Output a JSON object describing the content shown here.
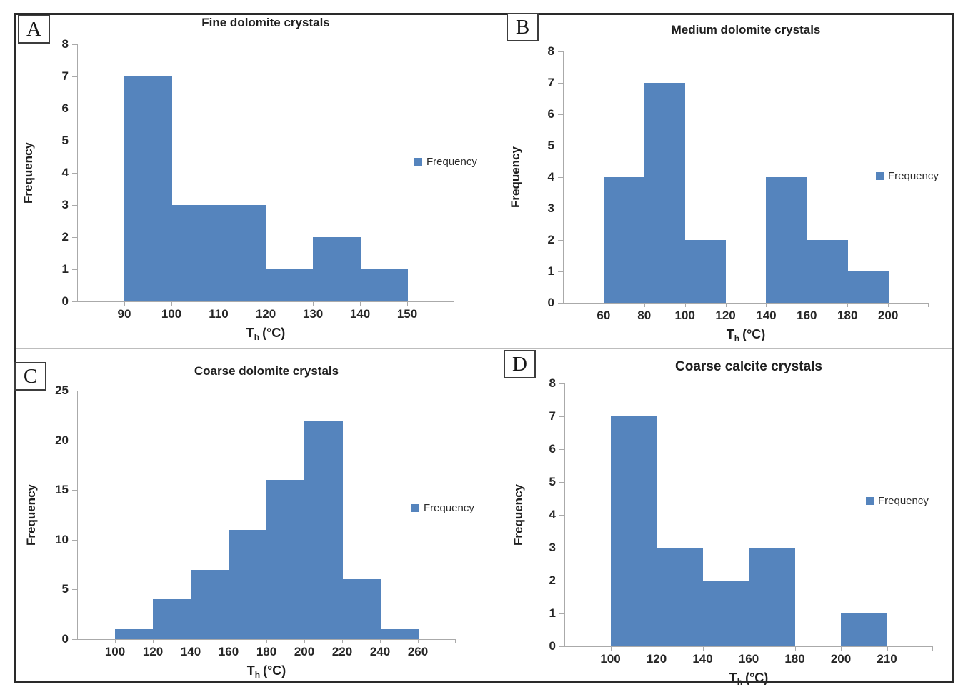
{
  "figure": {
    "background": "#FFFFFF",
    "border_color": "#2A2A2A",
    "bar_color": "#5584BD",
    "axis_color": "#AAAAAA",
    "text_color": "#1F1F1F"
  },
  "chart_data": [
    {
      "type": "bar",
      "panel": "A",
      "title": "Fine dolomite crystals",
      "ylabel": "Frequency",
      "xlabel_main": "T",
      "xlabel_sub": "h",
      "xlabel_unit": "(°C)",
      "legend_label": "Frequency",
      "legend_position": "right",
      "grid": false,
      "bin_edges": [
        90,
        100,
        110,
        120,
        130,
        140,
        150
      ],
      "values": [
        7,
        3,
        3,
        1,
        2,
        1
      ],
      "ylim": [
        0,
        8
      ],
      "yticks": [
        0,
        1,
        2,
        3,
        4,
        5,
        6,
        7,
        8
      ]
    },
    {
      "type": "bar",
      "panel": "B",
      "title": "Medium dolomite crystals",
      "ylabel": "Frequency",
      "xlabel_main": "T",
      "xlabel_sub": "h",
      "xlabel_unit": "(°C)",
      "legend_label": "Frequency",
      "legend_position": "right",
      "grid": false,
      "bin_edges": [
        60,
        80,
        100,
        120,
        140,
        160,
        180,
        200
      ],
      "values": [
        4,
        7,
        2,
        0,
        4,
        2,
        1
      ],
      "ylim": [
        0,
        8
      ],
      "yticks": [
        0,
        1,
        2,
        3,
        4,
        5,
        6,
        7,
        8
      ]
    },
    {
      "type": "bar",
      "panel": "C",
      "title": "Coarse dolomite crystals",
      "ylabel": "Frequency",
      "xlabel_main": "T",
      "xlabel_sub": "h",
      "xlabel_unit": "(°C)",
      "legend_label": "Frequency",
      "legend_position": "right",
      "grid": false,
      "bin_edges": [
        100,
        120,
        140,
        160,
        180,
        200,
        220,
        240,
        260
      ],
      "values": [
        1,
        4,
        7,
        11,
        16,
        22,
        6,
        1
      ],
      "ylim": [
        0,
        25
      ],
      "yticks": [
        0,
        5,
        10,
        15,
        20,
        25
      ]
    },
    {
      "type": "bar",
      "panel": "D",
      "title": "Coarse calcite crystals",
      "ylabel": "Frequency",
      "xlabel_main": "T",
      "xlabel_sub": "h",
      "xlabel_unit": "(°C)",
      "legend_label": "Frequency",
      "legend_position": "right",
      "grid": false,
      "bin_edges": [
        100,
        120,
        140,
        160,
        180,
        200,
        210
      ],
      "values": [
        7,
        3,
        2,
        3,
        0,
        1
      ],
      "ylim": [
        0,
        8
      ],
      "yticks": [
        0,
        1,
        2,
        3,
        4,
        5,
        6,
        7,
        8
      ]
    }
  ]
}
